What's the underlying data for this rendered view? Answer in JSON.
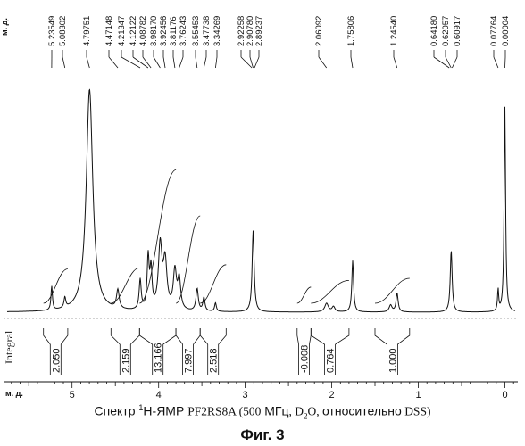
{
  "chart_data": {
    "type": "line",
    "x_unit_label": "м. д.",
    "peak_unit_label": "м. д.",
    "xlim": [
      5.75,
      -0.15
    ],
    "x_ticks": [
      "5",
      "4",
      "3",
      "2",
      "1",
      "0"
    ],
    "peak_labels": [
      "5.23549",
      "5.08302",
      "4.79751",
      "4.47148",
      "4.21347",
      "4.12122",
      "4.08782",
      "3.98170",
      "3.92456",
      "3.81176",
      "3.76243",
      "3.55453",
      "3.47738",
      "3.34269",
      "2.92258",
      "2.90780",
      "2.89237",
      "2.06092",
      "1.75806",
      "1.24540",
      "0.64180",
      "0.62057",
      "0.60917",
      "0.07764",
      "0.00004"
    ],
    "integral_label": "Integral",
    "integrals": [
      {
        "from": 5.33,
        "to": 5.05,
        "value": "2.050"
      },
      {
        "from": 4.55,
        "to": 4.22,
        "value": "2.159"
      },
      {
        "from": 4.22,
        "to": 3.8,
        "value": "13.166"
      },
      {
        "from": 3.8,
        "to": 3.52,
        "value": "7.997"
      },
      {
        "from": 3.52,
        "to": 3.22,
        "value": "2.518"
      },
      {
        "from": 2.4,
        "to": 2.24,
        "value": "-0.008"
      },
      {
        "from": 2.24,
        "to": 1.8,
        "value": "0.764"
      },
      {
        "from": 1.5,
        "to": 1.1,
        "value": "1.000"
      }
    ],
    "peaks": [
      {
        "ppm": 5.235,
        "h": 0.28,
        "w": 0.01
      },
      {
        "ppm": 5.083,
        "h": 0.12,
        "w": 0.012
      },
      {
        "ppm": 4.798,
        "h": 2.6,
        "w": 0.045
      },
      {
        "ppm": 4.471,
        "h": 0.22,
        "w": 0.018
      },
      {
        "ppm": 4.213,
        "h": 0.35,
        "w": 0.014
      },
      {
        "ppm": 4.121,
        "h": 0.6,
        "w": 0.014
      },
      {
        "ppm": 4.088,
        "h": 0.45,
        "w": 0.014
      },
      {
        "ppm": 3.982,
        "h": 0.75,
        "w": 0.025
      },
      {
        "ppm": 3.925,
        "h": 0.55,
        "w": 0.025
      },
      {
        "ppm": 3.812,
        "h": 0.45,
        "w": 0.022
      },
      {
        "ppm": 3.762,
        "h": 0.35,
        "w": 0.02
      },
      {
        "ppm": 3.555,
        "h": 0.26,
        "w": 0.016
      },
      {
        "ppm": 3.477,
        "h": 0.16,
        "w": 0.014
      },
      {
        "ppm": 3.343,
        "h": 0.1,
        "w": 0.012
      },
      {
        "ppm": 2.908,
        "h": 0.95,
        "w": 0.014
      },
      {
        "ppm": 2.06,
        "h": 0.1,
        "w": 0.025
      },
      {
        "ppm": 1.98,
        "h": 0.06,
        "w": 0.02
      },
      {
        "ppm": 1.758,
        "h": 0.6,
        "w": 0.012
      },
      {
        "ppm": 1.245,
        "h": 0.22,
        "w": 0.014
      },
      {
        "ppm": 1.32,
        "h": 0.08,
        "w": 0.02
      },
      {
        "ppm": 0.62,
        "h": 0.72,
        "w": 0.013
      },
      {
        "ppm": 0.078,
        "h": 0.25,
        "w": 0.008
      },
      {
        "ppm": 0.0,
        "h": 2.4,
        "w": 0.01
      }
    ],
    "caption": {
      "prefix": "Спектр ",
      "sup": "1",
      "mid": "Н-ЯМР ",
      "sample": "PF2RS8A (500",
      "field_unit": " МГц",
      "sep1": ", D",
      "sub": "2",
      "sol_end": "O, ",
      "ref_word": "относительно",
      "ref": " DSS)"
    },
    "figure_label": "Фиг. 3"
  }
}
